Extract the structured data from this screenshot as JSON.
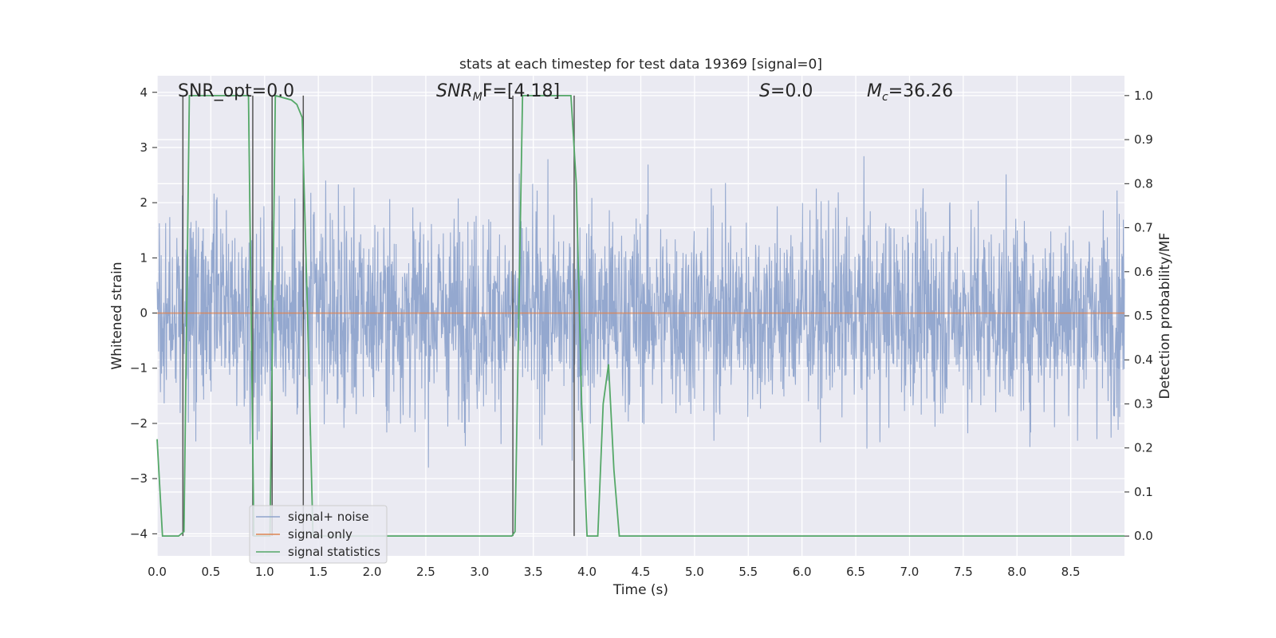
{
  "chart_data": {
    "type": "line",
    "title": "stats at each timestep for test data 19369 [signal=0]",
    "xlabel": "Time (s)",
    "ylabel_left": "Whitened strain",
    "ylabel_right": "Detection probability/MF",
    "xlim": [
      0.0,
      9.0
    ],
    "ylim_left": [
      -4.4,
      4.3
    ],
    "ylim_right": [
      -0.045,
      1.045
    ],
    "x_ticks": [
      "0.0",
      "0.5",
      "1.0",
      "1.5",
      "2.0",
      "2.5",
      "3.0",
      "3.5",
      "4.0",
      "4.5",
      "5.0",
      "5.5",
      "6.0",
      "6.5",
      "7.0",
      "7.5",
      "8.0",
      "8.5"
    ],
    "y_left_ticks": [
      "4",
      "3",
      "2",
      "1",
      "0",
      "−1",
      "−2",
      "−3",
      "−4"
    ],
    "y_right_ticks": [
      "1.0",
      "0.9",
      "0.8",
      "0.7",
      "0.6",
      "0.5",
      "0.4",
      "0.3",
      "0.2",
      "0.1",
      "0.0"
    ],
    "grid": true,
    "legend_placement": "lower-left",
    "annotations": {
      "snr_opt": "SNR_opt=0.0",
      "snr_mf_prefix": "SNR",
      "snr_mf_sub": "M",
      "snr_mf_suffix": "F=[4.18]",
      "s_prefix": "S",
      "s_suffix": "=0.0",
      "mc_prefix": "M",
      "mc_sub": "c",
      "mc_suffix": "=36.26"
    },
    "series": [
      {
        "name": "signal+ noise",
        "color": "#8fa4cc",
        "axis": "left",
        "description_kind": "dense-noise",
        "amplitude_envelope": [
          -2.2,
          2.2
        ],
        "peak_max": 4.0,
        "peak_min": -4.0
      },
      {
        "name": "signal only",
        "color": "#dd8452",
        "axis": "left",
        "x": [
          0.0,
          9.0
        ],
        "y": [
          0.0,
          0.0
        ]
      },
      {
        "name": "signal statistics",
        "color": "#55a868",
        "axis": "right",
        "x": [
          0.0,
          0.05,
          0.2,
          0.25,
          0.3,
          0.85,
          0.9,
          1.0,
          1.05,
          1.1,
          1.25,
          1.3,
          1.35,
          1.4,
          1.45,
          3.3,
          3.33,
          3.4,
          3.85,
          3.9,
          3.95,
          4.0,
          4.1,
          4.15,
          4.2,
          4.25,
          4.3,
          9.0
        ],
        "y": [
          0.22,
          0.0,
          0.0,
          0.01,
          1.0,
          1.0,
          0.0,
          0.0,
          0.0,
          1.0,
          0.99,
          0.98,
          0.95,
          0.5,
          0.0,
          0.0,
          0.01,
          1.0,
          1.0,
          0.8,
          0.3,
          0.0,
          0.0,
          0.3,
          0.39,
          0.15,
          0.0,
          0.0
        ]
      }
    ],
    "vertical_markers": {
      "color": "#555555",
      "x": [
        0.24,
        0.89,
        1.07,
        1.36,
        3.31,
        3.88
      ]
    }
  }
}
